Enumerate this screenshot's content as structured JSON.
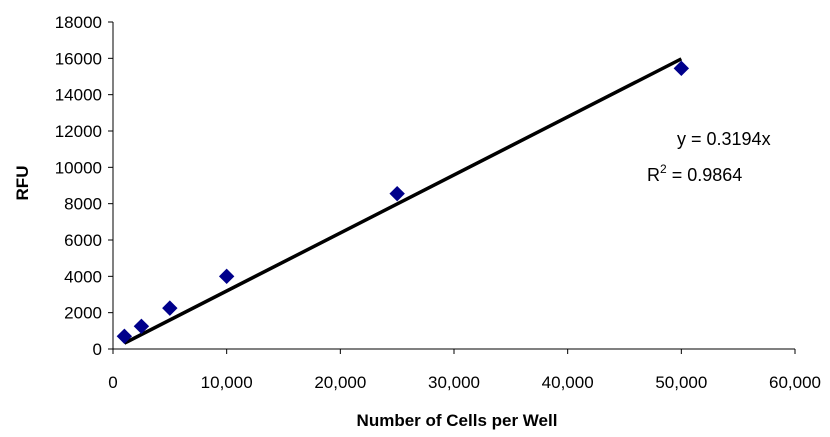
{
  "chart_data": {
    "type": "scatter",
    "xlabel": "Number of Cells per Well",
    "ylabel": "RFU",
    "xlim": [
      0,
      60000
    ],
    "ylim": [
      0,
      18000
    ],
    "x_ticks": [
      0,
      10000,
      20000,
      30000,
      40000,
      50000,
      60000
    ],
    "x_tick_labels": [
      "0",
      "10,000",
      "20,000",
      "30,000",
      "40,000",
      "50,000",
      "60,000"
    ],
    "y_ticks": [
      0,
      2000,
      4000,
      6000,
      8000,
      10000,
      12000,
      14000,
      16000,
      18000
    ],
    "y_tick_labels": [
      "0",
      "2000",
      "4000",
      "6000",
      "8000",
      "10000",
      "12000",
      "14000",
      "16000",
      "18000"
    ],
    "grid": false,
    "series": [
      {
        "marker": "diamond",
        "color": "#00008B",
        "x": [
          1000,
          2500,
          5000,
          10000,
          25000,
          50000
        ],
        "y": [
          700,
          1250,
          2250,
          4000,
          8550,
          15450
        ]
      }
    ],
    "trendline": {
      "type": "linear",
      "slope": 0.3194,
      "x_range": [
        1000,
        50000
      ],
      "color": "#000000"
    },
    "annotations": {
      "equation": "y = 0.3194x",
      "r2_prefix": "R",
      "r2_sup": "2",
      "r2_value": " = 0.9864"
    }
  }
}
